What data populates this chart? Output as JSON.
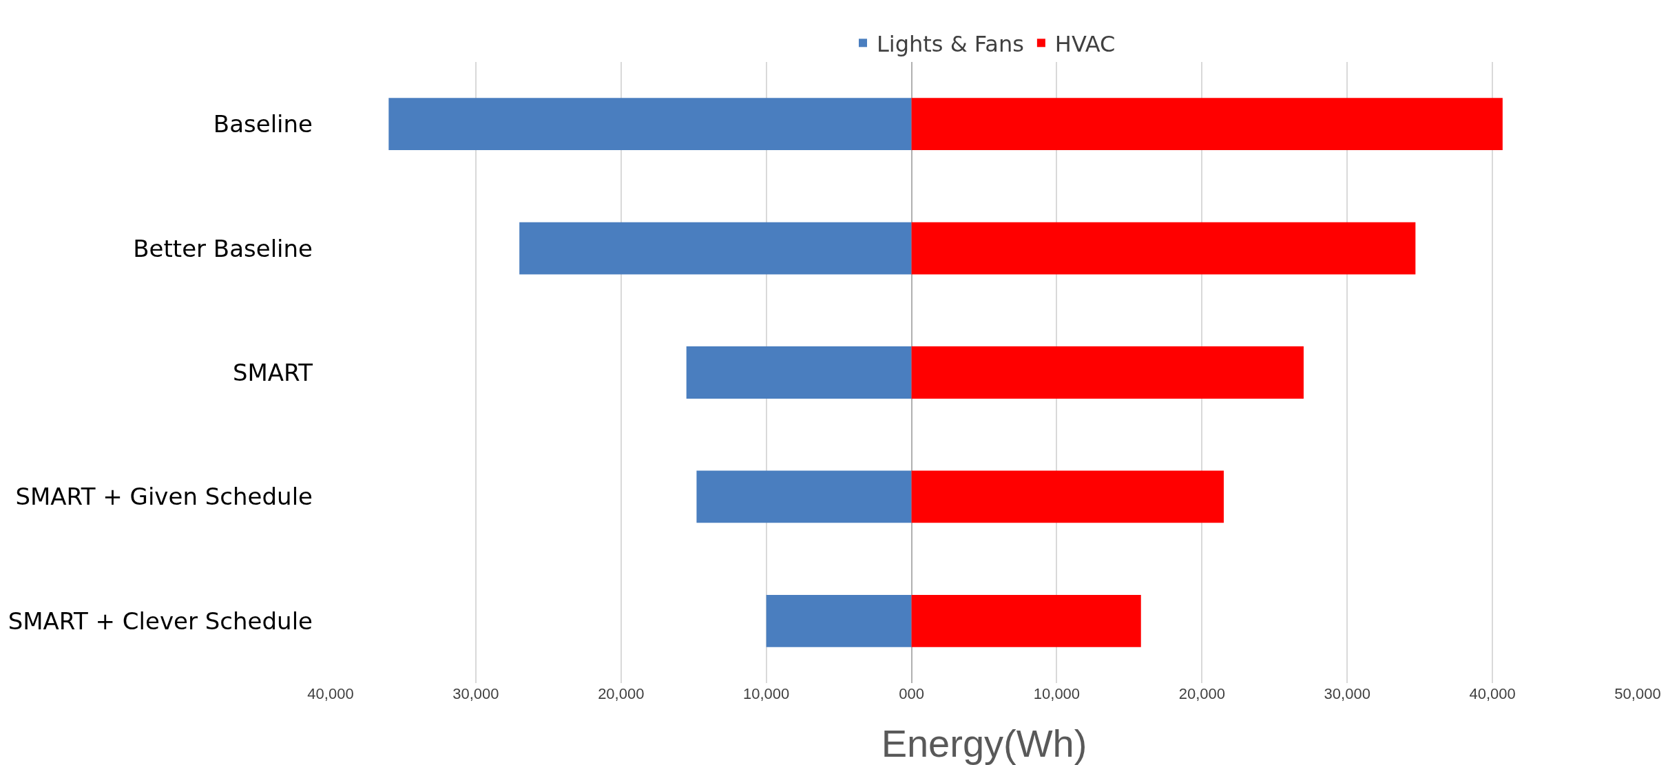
{
  "chart_data": {
    "type": "bar",
    "orientation": "horizontal",
    "stacked": true,
    "categories": [
      "Baseline",
      "Better Baseline",
      "SMART",
      "SMART + Given Schedule",
      "SMART + Clever Schedule"
    ],
    "series": [
      {
        "name": "Lights & Fans",
        "color": "#4a7ebf",
        "values": [
          -36000,
          -27000,
          -15500,
          -14800,
          -10000
        ]
      },
      {
        "name": "HVAC",
        "color": "#ff0000",
        "values": [
          40700,
          34700,
          27000,
          21500,
          15800
        ]
      }
    ],
    "xlabel": "Energy(Wh)",
    "xlim": [
      -40000,
      50000
    ],
    "xticks": [
      {
        "value": -40000,
        "label": "40,000"
      },
      {
        "value": -30000,
        "label": "30,000"
      },
      {
        "value": -20000,
        "label": "20,000"
      },
      {
        "value": -10000,
        "label": "10,000"
      },
      {
        "value": 0,
        "label": "000"
      },
      {
        "value": 10000,
        "label": "10,000"
      },
      {
        "value": 20000,
        "label": "20,000"
      },
      {
        "value": 30000,
        "label": "30,000"
      },
      {
        "value": 40000,
        "label": "40,000"
      },
      {
        "value": 50000,
        "label": "50,000"
      }
    ],
    "grid": "x",
    "legend": "top"
  }
}
